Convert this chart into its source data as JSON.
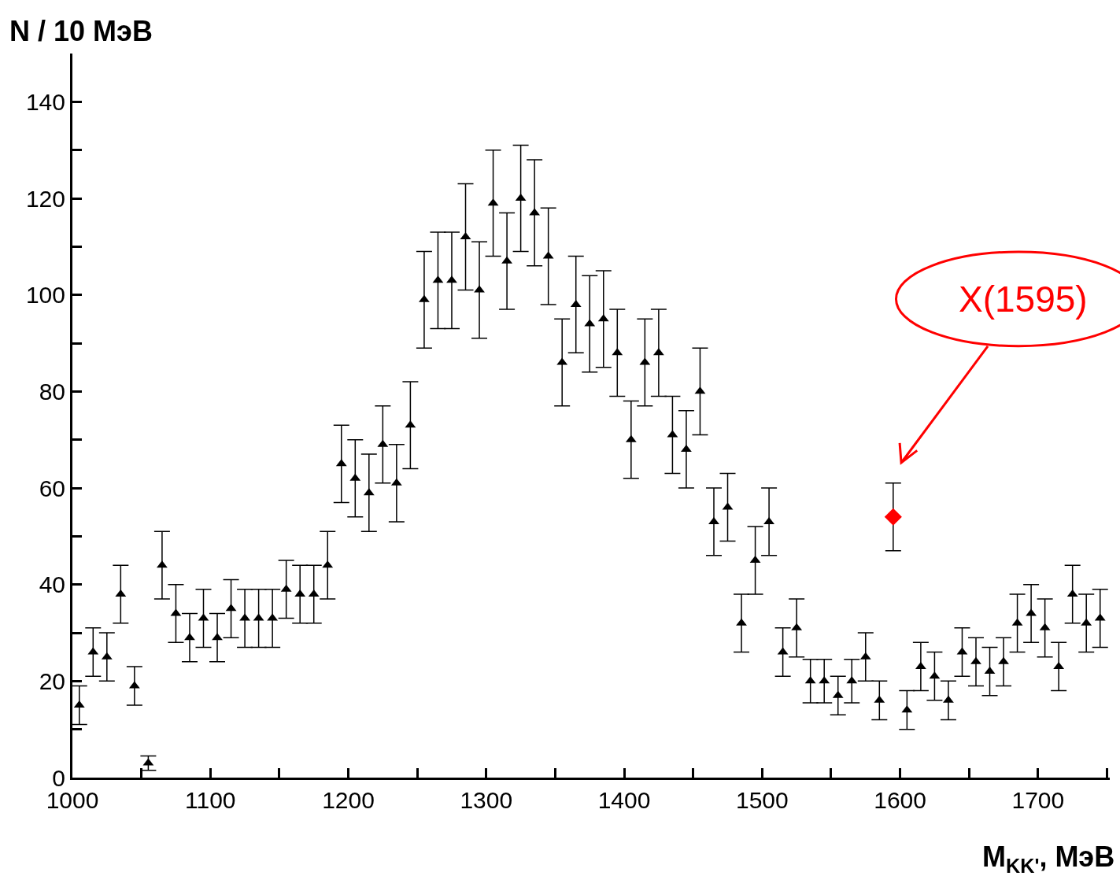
{
  "chart_data": {
    "type": "scatter",
    "xlabel": "M$_{KK'}$, МэВ",
    "ylabel": "N / 10 МэВ",
    "xlim": [
      1000,
      1752
    ],
    "ylim": [
      0,
      150
    ],
    "xticks": [
      1000,
      {
        "value": 1050,
        "label": null
      },
      1100,
      {
        "value": 1150,
        "label": null
      },
      1200,
      {
        "value": 1250,
        "label": null
      },
      1300,
      {
        "value": 1350,
        "label": null
      },
      1400,
      {
        "value": 1450,
        "label": null
      },
      1500,
      {
        "value": 1550,
        "label": null
      },
      1600,
      {
        "value": 1650,
        "label": null
      },
      1700,
      {
        "value": 1750,
        "label": null
      }
    ],
    "yticks": [
      0,
      {
        "value": 10,
        "label": null
      },
      20,
      {
        "value": 30,
        "label": null
      },
      40,
      {
        "value": 50,
        "label": null
      },
      60,
      {
        "value": 70,
        "label": null
      },
      80,
      {
        "value": 90,
        "label": null
      },
      100,
      {
        "value": 110,
        "label": null
      },
      120,
      {
        "value": 130,
        "label": null
      },
      140
    ],
    "series": [
      {
        "color": "#000000",
        "marker": "triangle",
        "x": [
          1005,
          1015,
          1025,
          1035,
          1045,
          1055,
          1065,
          1075,
          1085,
          1095,
          1105,
          1115,
          1125,
          1135,
          1145,
          1155,
          1165,
          1175,
          1185,
          1195,
          1205,
          1215,
          1225,
          1235,
          1245,
          1255,
          1265,
          1275,
          1285,
          1295,
          1305,
          1315,
          1325,
          1335,
          1345,
          1355,
          1365,
          1375,
          1385,
          1395,
          1405,
          1415,
          1425,
          1435,
          1445,
          1455,
          1465,
          1475,
          1485,
          1495,
          1505,
          1515,
          1525,
          1535,
          1545,
          1555,
          1565,
          1575,
          1585,
          1605,
          1615,
          1625,
          1635,
          1645,
          1655,
          1665,
          1675,
          1685,
          1695,
          1705,
          1715,
          1725,
          1735,
          1745
        ],
        "values": [
          15,
          26,
          25,
          38,
          19,
          3,
          44,
          34,
          29,
          33,
          29,
          35,
          33,
          33,
          33,
          39,
          38,
          38,
          44,
          65,
          62,
          59,
          69,
          61,
          73,
          99,
          103,
          103,
          112,
          101,
          119,
          107,
          120,
          117,
          108,
          86,
          98,
          94,
          95,
          88,
          70,
          86,
          88,
          71,
          68,
          80,
          53,
          56,
          32,
          45,
          53,
          26,
          31,
          20,
          20,
          17,
          20,
          25,
          16,
          14,
          23,
          21,
          16,
          26,
          24,
          22,
          24,
          32,
          34,
          31,
          23,
          38,
          32,
          33
        ],
        "errors": [
          4,
          5,
          5,
          6,
          4,
          1.5,
          7,
          6,
          5,
          6,
          5,
          6,
          6,
          6,
          6,
          6,
          6,
          6,
          7,
          8,
          8,
          8,
          8,
          8,
          9,
          10,
          10,
          10,
          11,
          10,
          11,
          10,
          11,
          11,
          10,
          9,
          10,
          10,
          10,
          9,
          8,
          9,
          9,
          8,
          8,
          9,
          7,
          7,
          6,
          7,
          7,
          5,
          6,
          4.5,
          4.5,
          4,
          4.5,
          5,
          4,
          4,
          5,
          5,
          4,
          5,
          5,
          5,
          5,
          6,
          6,
          6,
          5,
          6,
          6,
          6
        ]
      },
      {
        "color": "#ff0000",
        "marker": "diamond",
        "x": [
          1595
        ],
        "values": [
          54
        ],
        "errors": [
          7
        ]
      }
    ],
    "annotations": [
      "X(1595)"
    ]
  }
}
